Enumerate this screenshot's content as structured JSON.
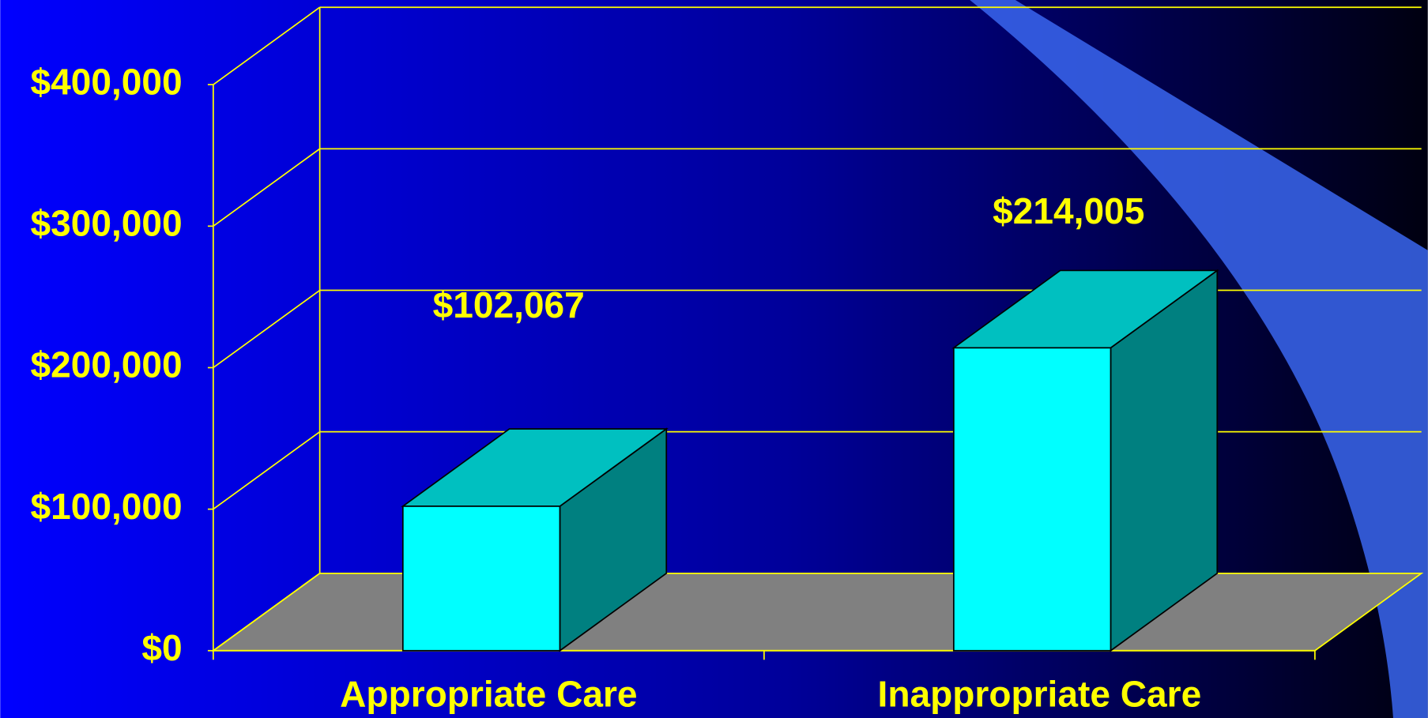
{
  "chart_data": {
    "type": "bar3d",
    "categories": [
      "Appropriate Care",
      "Inappropriate Care"
    ],
    "values": [
      102067,
      214005
    ],
    "value_labels": [
      "$102,067",
      "$214,005"
    ],
    "color": "#00ffff",
    "ylim": [
      0,
      400000
    ],
    "yticks": [
      {
        "value": 0,
        "label": "$0"
      },
      {
        "value": 100000,
        "label": "$100,000"
      },
      {
        "value": 200000,
        "label": "$200,000"
      },
      {
        "value": 300000,
        "label": "$300,000"
      },
      {
        "value": 400000,
        "label": "$400,000"
      }
    ],
    "grid": true
  }
}
